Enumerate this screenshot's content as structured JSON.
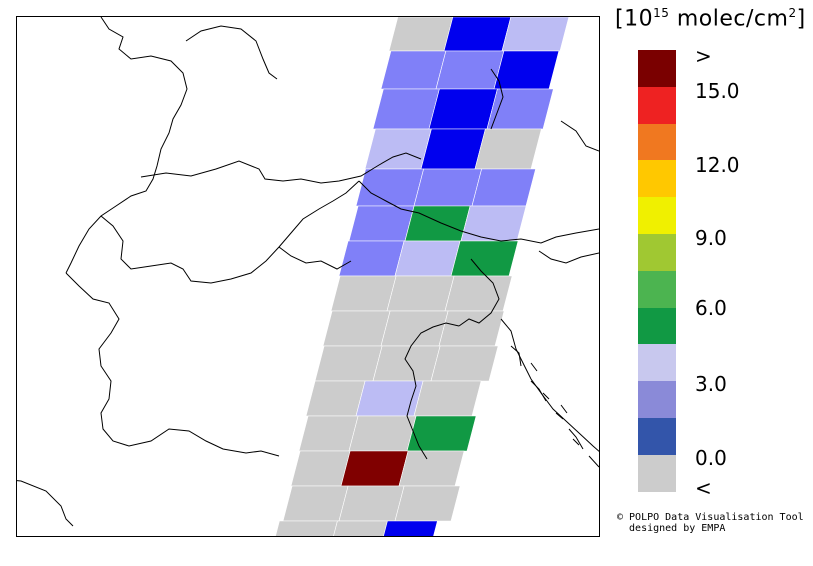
{
  "legend": {
    "title_open": "[10",
    "title_exp": "15",
    "title_unit": " molec/cm",
    "title_sq": "2",
    "title_close": "]",
    "colors": [
      "#7a0000",
      "#ee2222",
      "#f07820",
      "#ffc800",
      "#f0f000",
      "#a0c832",
      "#4cb450",
      "#119944",
      "#c8c8ee",
      "#8a8ad8",
      "#3355aa",
      "#cccccc"
    ],
    "labels": [
      ">",
      "15.0",
      "12.0",
      "9.0",
      "6.0",
      "3.0",
      "0.0",
      "<"
    ]
  },
  "credit": {
    "line1": "© POLPO Data Visualisation Tool",
    "line2": "  designed by EMPA"
  },
  "map": {
    "colors": {
      "gray": "#cccccc",
      "light": "#bcbcf4",
      "mid": "#8080f8",
      "blue": "#0000ee",
      "green": "#119944",
      "red": "#800000"
    }
  }
}
